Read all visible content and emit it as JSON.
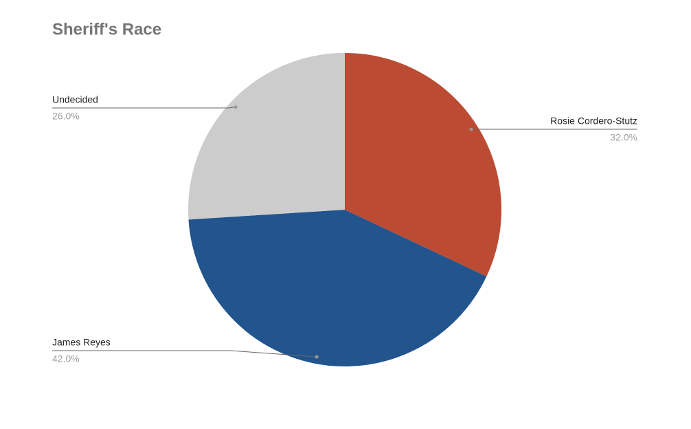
{
  "chart_data": {
    "type": "pie",
    "title": "Sheriff's Race",
    "categories": [
      "Rosie Cordero-Stutz",
      "James Reyes",
      "Undecided"
    ],
    "values": [
      32,
      42,
      26
    ],
    "value_labels": [
      "32.0%",
      "42.0%",
      "26.0%"
    ],
    "colors": [
      "#bb4c33",
      "#22548e",
      "#cccccc"
    ]
  }
}
